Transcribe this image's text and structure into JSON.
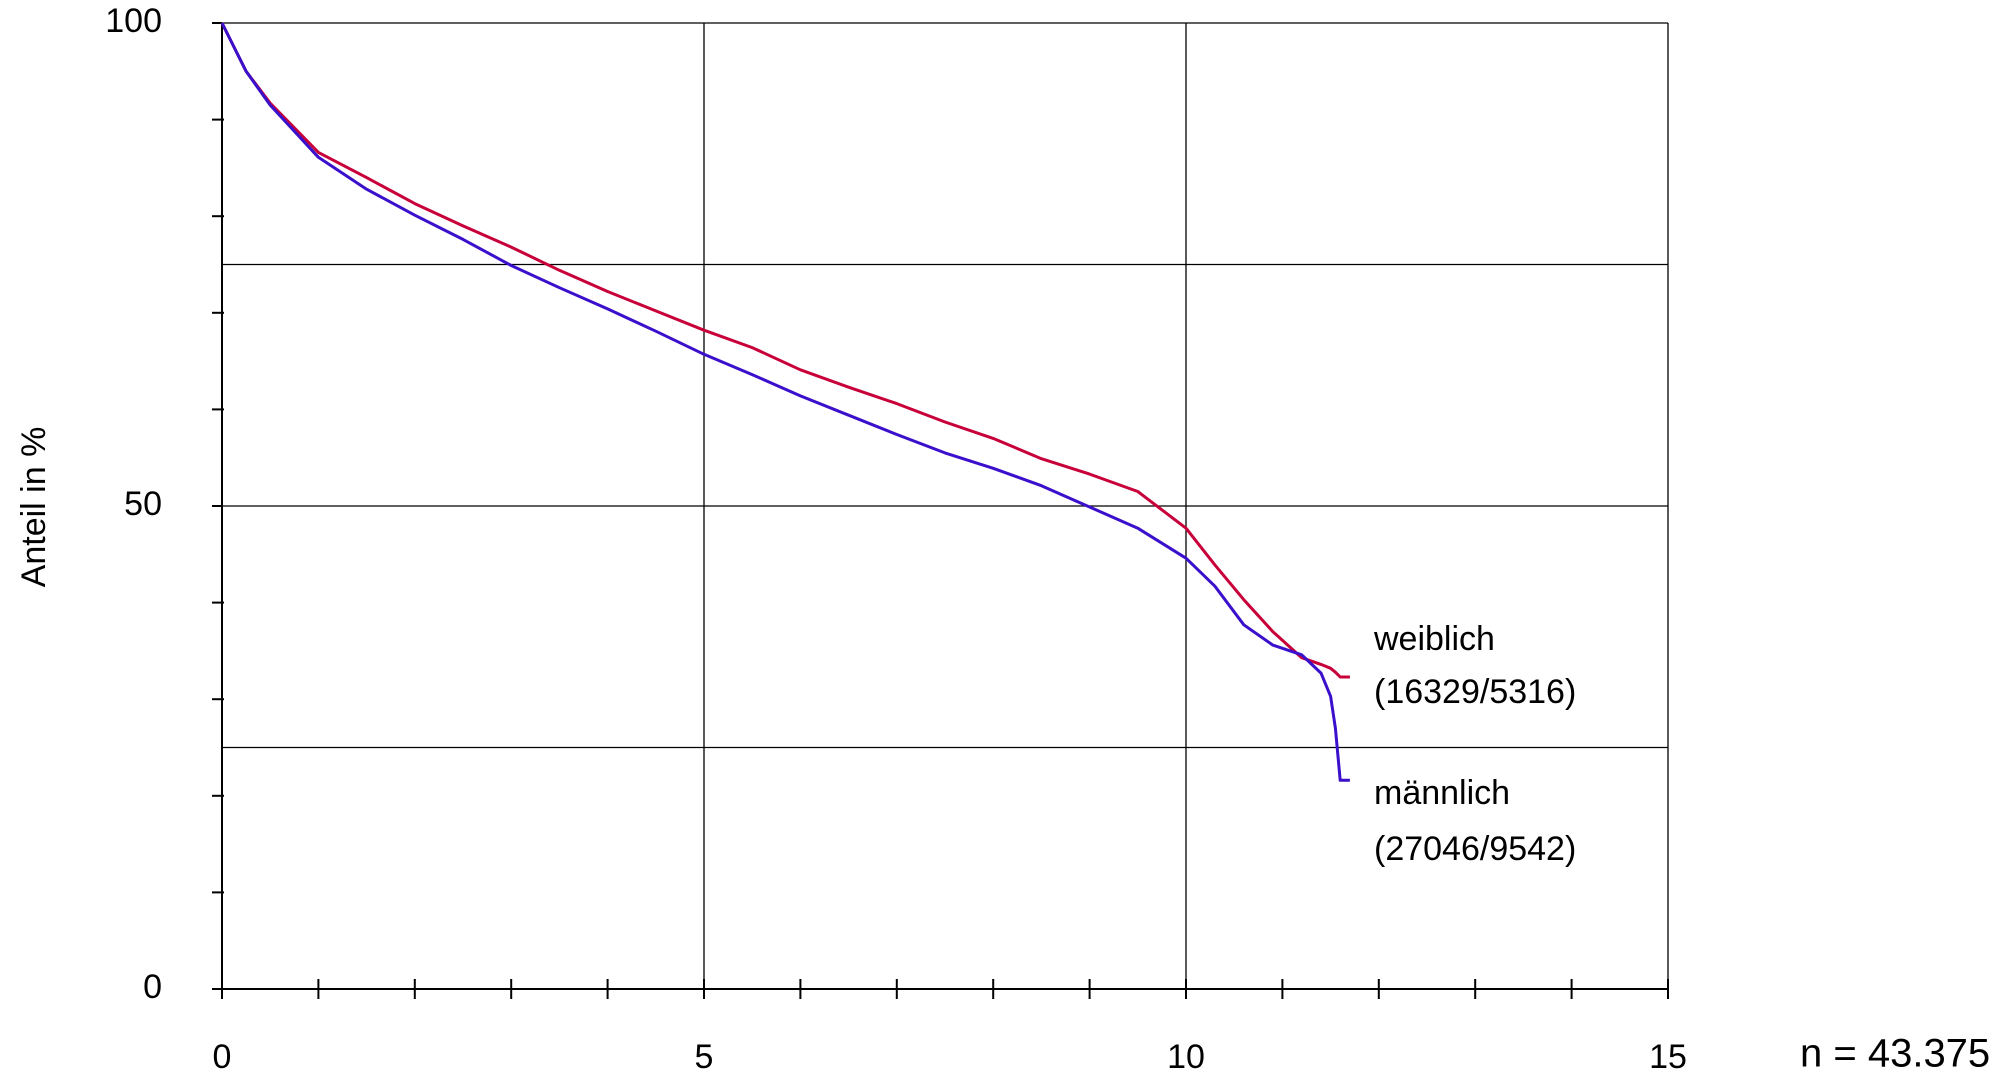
{
  "chart_data": {
    "type": "line",
    "ylabel": "Anteil in %",
    "note": "n = 43.375",
    "xlim": [
      0,
      15
    ],
    "xticks": [
      0,
      5,
      10,
      15
    ],
    "x_minor_ticks": [
      1,
      2,
      3,
      4,
      6,
      7,
      8,
      9,
      11,
      12,
      13,
      14
    ],
    "ylim": [
      0,
      100
    ],
    "yticks": [
      0,
      50,
      100
    ],
    "y_minor_ticks": [
      10,
      20,
      30,
      40,
      60,
      70,
      80,
      90
    ],
    "x_grid": [
      5,
      10,
      15
    ],
    "y_grid": [
      25,
      50,
      75,
      100
    ],
    "grid": true,
    "x": [
      0,
      0.25,
      0.5,
      1,
      1.5,
      2,
      2.5,
      3,
      3.5,
      4,
      4.5,
      5,
      5.5,
      6,
      6.5,
      7,
      7.5,
      8,
      8.5,
      9,
      9.5,
      10,
      10.3,
      10.6,
      10.9,
      11.2,
      11.4,
      11.5,
      11.55,
      11.6,
      11.7
    ],
    "series": [
      {
        "name": "weiblich",
        "counts": "(16329/5316)",
        "color": "#c8003a",
        "values": [
          100,
          95,
          91.7,
          86.6,
          84,
          81.3,
          79,
          76.8,
          74.4,
          72.2,
          70.2,
          68.2,
          66.4,
          64.1,
          62.3,
          60.6,
          58.7,
          57,
          54.9,
          53.3,
          51.5,
          47.7,
          43.9,
          40.3,
          37,
          34.3,
          33.6,
          33.2,
          32.8,
          32.3,
          32.3
        ]
      },
      {
        "name": "männlich",
        "counts": "(27046/9542)",
        "color": "#3a10cc",
        "values": [
          100,
          95,
          91.5,
          86.1,
          82.8,
          80.1,
          77.6,
          74.9,
          72.6,
          70.4,
          68.1,
          65.7,
          63.6,
          61.4,
          59.4,
          57.4,
          55.5,
          53.9,
          52.1,
          49.9,
          47.7,
          44.6,
          41.7,
          37.7,
          35.6,
          34.6,
          32.7,
          30.3,
          27,
          21.6,
          21.6
        ]
      }
    ]
  }
}
